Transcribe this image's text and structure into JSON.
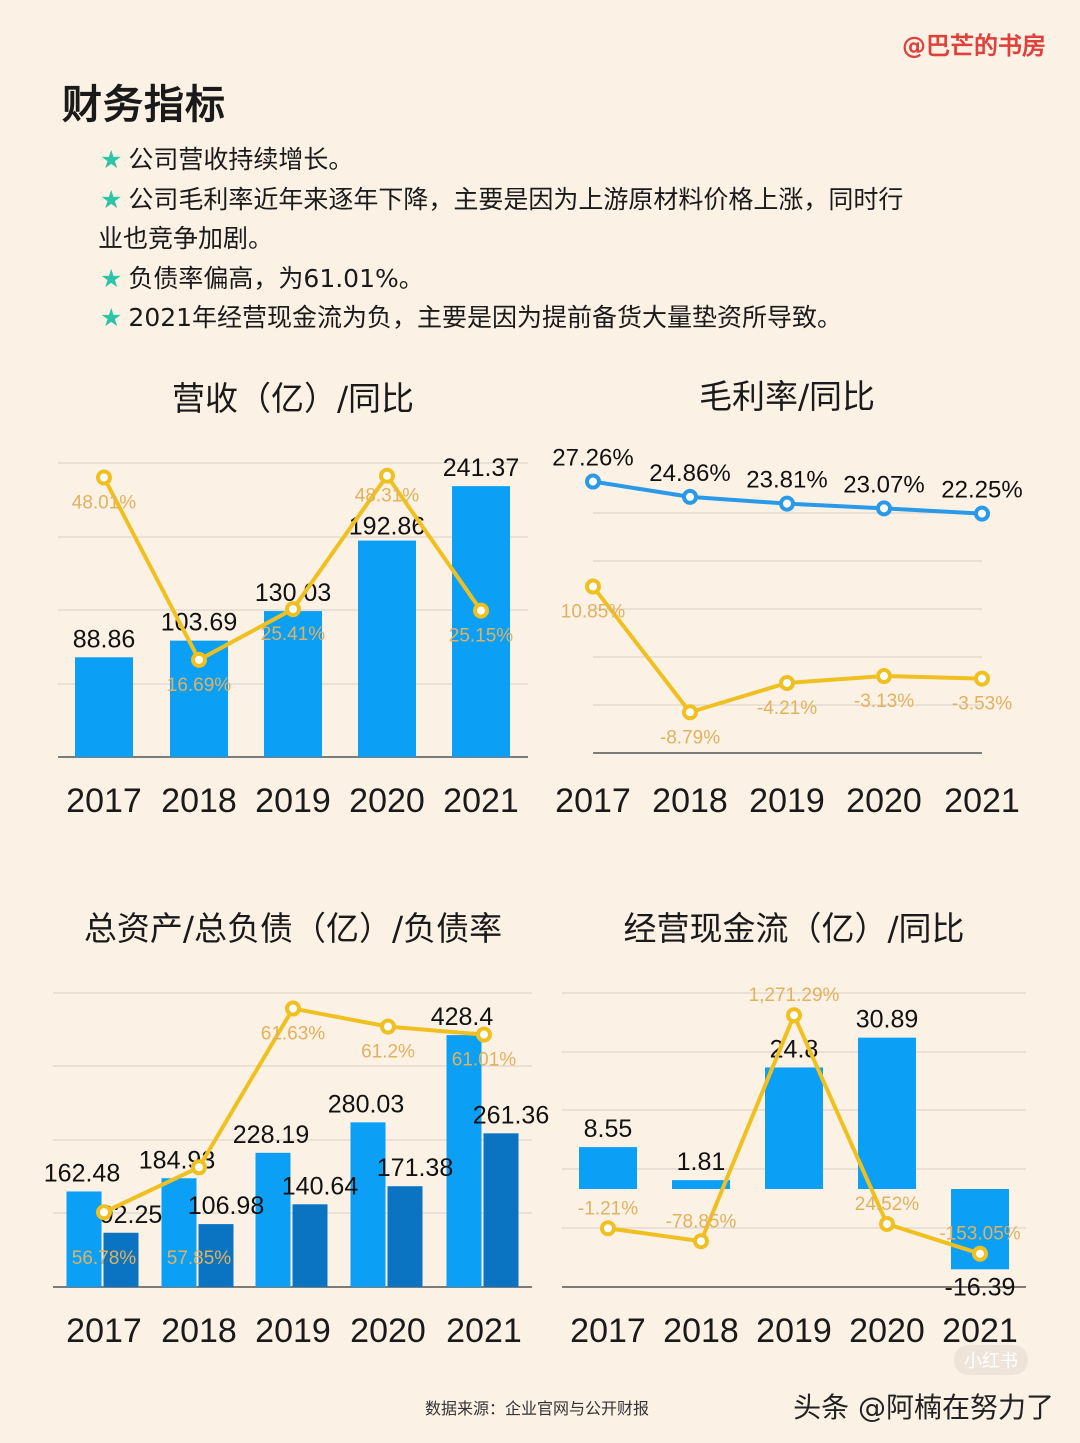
{
  "watermark": "@巴芒的书房",
  "title": "财务指标",
  "bullets": [
    "公司营收持续增长。",
    "公司毛利率近年来逐年下降，主要是因为上游原材料价格上涨，同时行",
    "业也竞争加剧。",
    "负债率偏高，为61.01%。",
    "2021年经营现金流为负，主要是因为提前备货大量垫资所导致。"
  ],
  "star_icon": "★",
  "colors": {
    "bar": "#0ba0f5",
    "bar_dark": "#0a74c2",
    "line": "#f0c020",
    "line_label": "#e2b15e",
    "line_blue": "#2a9ae8",
    "accent_star": "#2ec4a8",
    "watermark": "#e0403a"
  },
  "chart_data": [
    {
      "type": "bar+line",
      "title": "营收（亿）/同比",
      "categories": [
        "2017",
        "2018",
        "2019",
        "2020",
        "2021"
      ],
      "series": [
        {
          "type": "bar",
          "values": [
            88.86,
            103.69,
            130.03,
            192.86,
            241.37
          ],
          "labels": [
            "88.86",
            "103.69",
            "130.03",
            "192.86",
            "241.37"
          ]
        },
        {
          "type": "line",
          "values": [
            48.01,
            16.69,
            25.41,
            48.31,
            25.15
          ],
          "labels": [
            "48.01%",
            "16.69%",
            "25.41%",
            "48.31%",
            "25.15%"
          ]
        }
      ],
      "ylim": [
        0,
        262
      ],
      "y2lim": [
        0,
        50.5
      ],
      "grid": true
    },
    {
      "type": "line",
      "title": "毛利率/同比",
      "categories": [
        "2017",
        "2018",
        "2019",
        "2020",
        "2021"
      ],
      "series": [
        {
          "type": "line",
          "color": "#2a9ae8",
          "values": [
            27.26,
            24.86,
            23.81,
            23.07,
            22.25
          ],
          "labels": [
            "27.26%",
            "24.86%",
            "23.81%",
            "23.07%",
            "22.25%"
          ]
        },
        {
          "type": "line",
          "color": "#f0c020",
          "values": [
            10.85,
            -8.79,
            -4.21,
            -3.13,
            -3.53
          ],
          "labels": [
            "10.85%",
            "-8.79%",
            "-4.21%",
            "-3.13%",
            "-3.53%"
          ]
        }
      ],
      "ylim": [
        -15,
        30
      ],
      "grid": true
    },
    {
      "type": "bar+line",
      "title": "总资产/总负债（亿）/负债率",
      "categories": [
        "2017",
        "2018",
        "2019",
        "2020",
        "2021"
      ],
      "series": [
        {
          "type": "bar",
          "values": [
            162.48,
            184.93,
            228.19,
            280.03,
            428.4
          ],
          "labels": [
            "162.48",
            "184.93",
            "228.19",
            "280.03",
            "428.4"
          ]
        },
        {
          "type": "bar",
          "values": [
            92.25,
            106.98,
            140.64,
            171.38,
            261.36
          ],
          "labels": [
            "92.25",
            "106.98",
            "140.64",
            "171.38",
            "261.36"
          ]
        },
        {
          "type": "line",
          "values": [
            56.78,
            57.85,
            61.63,
            61.2,
            61.01
          ],
          "labels": [
            "56.78%",
            "57.85%",
            "61.63%",
            "61.2%",
            "61.01%"
          ]
        }
      ],
      "ylim": [
        0,
        500
      ],
      "y2lim": [
        55,
        62
      ],
      "grid": true
    },
    {
      "type": "bar+line",
      "title": "经营现金流（亿）/同比",
      "categories": [
        "2017",
        "2018",
        "2019",
        "2020",
        "2021"
      ],
      "series": [
        {
          "type": "bar",
          "values": [
            8.55,
            1.81,
            24.8,
            30.89,
            -16.39
          ],
          "labels": [
            "8.55",
            "1.81",
            "24.8",
            "30.89",
            "-16.39"
          ]
        },
        {
          "type": "line",
          "values": [
            -1.21,
            -78.85,
            1271.29,
            24.52,
            -153.05
          ],
          "labels": [
            "-1.21%",
            "-78.85%",
            "1,271.29%",
            "24.52%",
            "-153.05%"
          ]
        }
      ],
      "ylim": [
        -20,
        40
      ],
      "y2lim": [
        -352,
        1404
      ],
      "grid": true
    }
  ],
  "footer": {
    "source": "数据来源：企业官网与公开财报",
    "credit": "头条 @阿楠在努力了",
    "logo": "小红书"
  }
}
